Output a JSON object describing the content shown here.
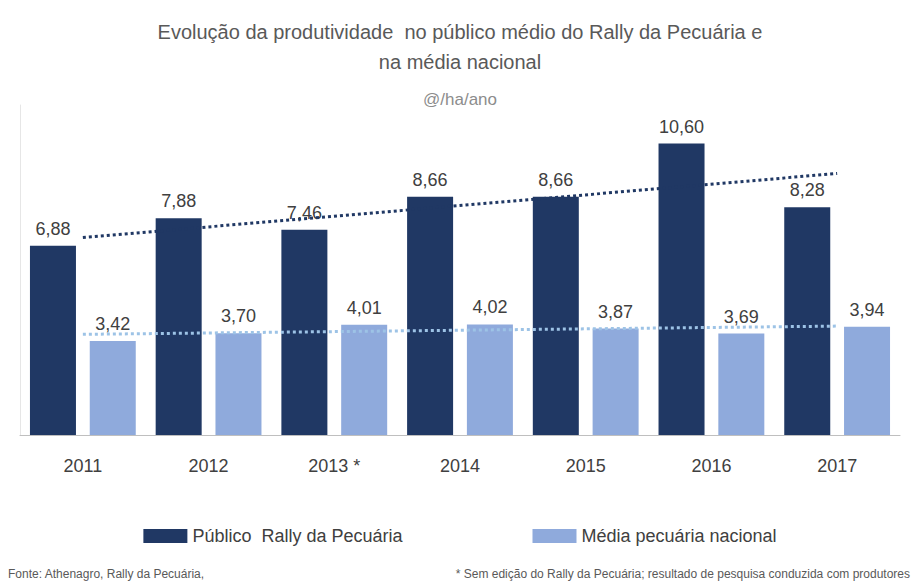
{
  "chart_data": {
    "type": "bar",
    "title": "Evolução da produtividade  no público médio do Rally da Pecuária e\nna média nacional",
    "subtitle": "@/ha/ano",
    "categories": [
      "2011",
      "2012",
      "2013 *",
      "2014",
      "2015",
      "2016",
      "2017"
    ],
    "series": [
      {
        "name": "Público  Rally da Pecuária",
        "color": "#203864",
        "values": [
          6.88,
          7.88,
          7.46,
          8.66,
          8.66,
          10.6,
          8.28
        ],
        "value_labels": [
          "6,88",
          "7,88",
          "7,46",
          "8,66",
          "8,66",
          "10,60",
          "8,28"
        ],
        "trend": {
          "values": [
            7.18,
            9.51
          ],
          "color": "#203864",
          "line_style": "dotted"
        }
      },
      {
        "name": "Média pecuária nacional",
        "color": "#8FAADC",
        "values": [
          3.42,
          3.7,
          4.01,
          4.02,
          3.87,
          3.69,
          3.94
        ],
        "value_labels": [
          "3,42",
          "3,70",
          "4,01",
          "4,02",
          "3,87",
          "3,69",
          "3,94"
        ],
        "trend": {
          "values": [
            3.66,
            3.96
          ],
          "color": "#9DC3E6",
          "line_style": "dotted"
        }
      }
    ],
    "ylim": [
      0,
      12
    ],
    "tick_labels": "x",
    "grid": false,
    "legend": "bottom",
    "data_labels": true,
    "annotations": [
      "Fonte: Athenagro, Rally da Pecuária,",
      "* Sem edição do Rally da Pecuária; resultado de pesquisa conduzida com produtores"
    ]
  }
}
